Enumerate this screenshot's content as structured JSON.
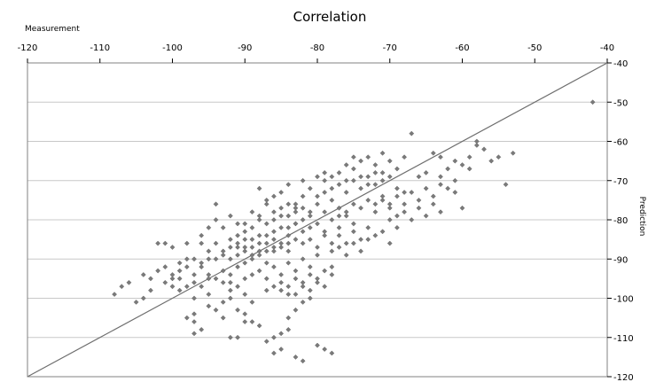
{
  "chart_data": {
    "type": "scatter",
    "title": "Correlation",
    "xlabel": "Measurement",
    "ylabel": "Prediction",
    "xlim": [
      -120,
      -40
    ],
    "ylim": [
      -120,
      -40
    ],
    "x_ticks": [
      -120,
      -110,
      -100,
      -90,
      -80,
      -70,
      -60,
      -50,
      -40
    ],
    "y_ticks": [
      -40,
      -50,
      -60,
      -70,
      -80,
      -90,
      -100,
      -110,
      -120
    ],
    "x_axis_position": "top",
    "y_axis_position": "right",
    "grid": "horizontal",
    "reference_line": {
      "from": [
        -120,
        -120
      ],
      "to": [
        -40,
        -40
      ]
    },
    "colors": {
      "points": "#7a7a7a",
      "line": "#6e6e6e",
      "grid": "#c8c8c8",
      "frame": "#808080"
    },
    "series": [
      {
        "values_note": "",
        "points": [
          [
            -108,
            -99
          ],
          [
            -107,
            -97
          ],
          [
            -106,
            -96
          ],
          [
            -105,
            -101
          ],
          [
            -104,
            -100
          ],
          [
            -103,
            -98
          ],
          [
            -102,
            -86
          ],
          [
            -101,
            -86
          ],
          [
            -100,
            -87
          ],
          [
            -100,
            -95
          ],
          [
            -99,
            -93
          ],
          [
            -99,
            -98
          ],
          [
            -98,
            -86
          ],
          [
            -98,
            -90
          ],
          [
            -97,
            -94
          ],
          [
            -97,
            -100
          ],
          [
            -96,
            -86
          ],
          [
            -96,
            -92
          ],
          [
            -95,
            -95
          ],
          [
            -95,
            -99
          ],
          [
            -94,
            -76
          ],
          [
            -94,
            -90
          ],
          [
            -93,
            -96
          ],
          [
            -93,
            -101
          ],
          [
            -92,
            -98
          ],
          [
            -92,
            -94
          ],
          [
            -91,
            -92
          ],
          [
            -91,
            -97
          ],
          [
            -90,
            -95
          ],
          [
            -90,
            -99
          ],
          [
            -97,
            -104
          ],
          [
            -97,
            -106
          ],
          [
            -96,
            -108
          ],
          [
            -95,
            -102
          ],
          [
            -94,
            -103
          ],
          [
            -93,
            -105
          ],
          [
            -92,
            -100
          ],
          [
            -91,
            -103
          ],
          [
            -90,
            -104
          ],
          [
            -89,
            -101
          ],
          [
            -96,
            -84
          ],
          [
            -95,
            -82
          ],
          [
            -94,
            -80
          ],
          [
            -93,
            -82
          ],
          [
            -92,
            -79
          ],
          [
            -91,
            -81
          ],
          [
            -90,
            -83
          ],
          [
            -89,
            -78
          ],
          [
            -88,
            -80
          ],
          [
            -87,
            -76
          ],
          [
            -95,
            -88
          ],
          [
            -94,
            -86
          ],
          [
            -93,
            -88
          ],
          [
            -92,
            -85
          ],
          [
            -91,
            -87
          ],
          [
            -90,
            -85
          ],
          [
            -89,
            -87
          ],
          [
            -88,
            -84
          ],
          [
            -87,
            -86
          ],
          [
            -86,
            -83
          ],
          [
            -92,
            -90
          ],
          [
            -91,
            -89
          ],
          [
            -90,
            -91
          ],
          [
            -89,
            -90
          ],
          [
            -88,
            -89
          ],
          [
            -87,
            -91
          ],
          [
            -86,
            -88
          ],
          [
            -85,
            -86
          ],
          [
            -84,
            -88
          ],
          [
            -83,
            -85
          ],
          [
            -89,
            -94
          ],
          [
            -88,
            -93
          ],
          [
            -87,
            -95
          ],
          [
            -86,
            -92
          ],
          [
            -85,
            -94
          ],
          [
            -84,
            -91
          ],
          [
            -83,
            -93
          ],
          [
            -82,
            -90
          ],
          [
            -81,
            -92
          ],
          [
            -80,
            -89
          ],
          [
            -88,
            -72
          ],
          [
            -87,
            -75
          ],
          [
            -86,
            -74
          ],
          [
            -85,
            -73
          ],
          [
            -84,
            -71
          ],
          [
            -83,
            -76
          ],
          [
            -82,
            -70
          ],
          [
            -81,
            -72
          ],
          [
            -80,
            -69
          ],
          [
            -79,
            -68
          ],
          [
            -86,
            -78
          ],
          [
            -85,
            -77
          ],
          [
            -84,
            -79
          ],
          [
            -83,
            -78
          ],
          [
            -82,
            -77
          ],
          [
            -81,
            -79
          ],
          [
            -80,
            -76
          ],
          [
            -79,
            -78
          ],
          [
            -78,
            -75
          ],
          [
            -77,
            -77
          ],
          [
            -84,
            -82
          ],
          [
            -83,
            -81
          ],
          [
            -82,
            -83
          ],
          [
            -81,
            -82
          ],
          [
            -80,
            -81
          ],
          [
            -79,
            -83
          ],
          [
            -78,
            -80
          ],
          [
            -77,
            -82
          ],
          [
            -76,
            -79
          ],
          [
            -75,
            -81
          ],
          [
            -82,
            -86
          ],
          [
            -81,
            -85
          ],
          [
            -80,
            -87
          ],
          [
            -79,
            -84
          ],
          [
            -78,
            -86
          ],
          [
            -77,
            -84
          ],
          [
            -76,
            -86
          ],
          [
            -75,
            -83
          ],
          [
            -74,
            -85
          ],
          [
            -73,
            -82
          ],
          [
            -80,
            -74
          ],
          [
            -79,
            -73
          ],
          [
            -78,
            -72
          ],
          [
            -77,
            -71
          ],
          [
            -76,
            -73
          ],
          [
            -75,
            -70
          ],
          [
            -74,
            -72
          ],
          [
            -73,
            -69
          ],
          [
            -72,
            -71
          ],
          [
            -71,
            -68
          ],
          [
            -76,
            -66
          ],
          [
            -75,
            -64
          ],
          [
            -74,
            -65
          ],
          [
            -73,
            -64
          ],
          [
            -72,
            -66
          ],
          [
            -71,
            -63
          ],
          [
            -70,
            -65
          ],
          [
            -69,
            -67
          ],
          [
            -68,
            -64
          ],
          [
            -67,
            -58
          ],
          [
            -72,
            -76
          ],
          [
            -71,
            -75
          ],
          [
            -70,
            -77
          ],
          [
            -69,
            -74
          ],
          [
            -68,
            -76
          ],
          [
            -67,
            -73
          ],
          [
            -66,
            -75
          ],
          [
            -65,
            -72
          ],
          [
            -64,
            -74
          ],
          [
            -63,
            -71
          ],
          [
            -70,
            -80
          ],
          [
            -69,
            -79
          ],
          [
            -68,
            -78
          ],
          [
            -67,
            -80
          ],
          [
            -66,
            -77
          ],
          [
            -65,
            -79
          ],
          [
            -64,
            -76
          ],
          [
            -63,
            -78
          ],
          [
            -62,
            -72
          ],
          [
            -61,
            -73
          ],
          [
            -66,
            -69
          ],
          [
            -65,
            -68
          ],
          [
            -64,
            -63
          ],
          [
            -63,
            -64
          ],
          [
            -62,
            -67
          ],
          [
            -61,
            -70
          ],
          [
            -60,
            -66
          ],
          [
            -59,
            -64
          ],
          [
            -58,
            -61
          ],
          [
            -57,
            -62
          ],
          [
            -60,
            -77
          ],
          [
            -56,
            -65
          ],
          [
            -55,
            -64
          ],
          [
            -54,
            -71
          ],
          [
            -53,
            -63
          ],
          [
            -42,
            -50
          ],
          [
            -58,
            -60
          ],
          [
            -61,
            -65
          ],
          [
            -59,
            -67
          ],
          [
            -63,
            -69
          ],
          [
            -98,
            -105
          ],
          [
            -97,
            -109
          ],
          [
            -92,
            -110
          ],
          [
            -89,
            -106
          ],
          [
            -87,
            -111
          ],
          [
            -86,
            -114
          ],
          [
            -85,
            -113
          ],
          [
            -84,
            -108
          ],
          [
            -83,
            -115
          ],
          [
            -82,
            -116
          ],
          [
            -80,
            -112
          ],
          [
            -79,
            -113
          ],
          [
            -78,
            -114
          ],
          [
            -85,
            -109
          ],
          [
            -88,
            -107
          ],
          [
            -90,
            -106
          ],
          [
            -91,
            -110
          ],
          [
            -86,
            -110
          ],
          [
            -84,
            -105
          ],
          [
            -83,
            -103
          ],
          [
            -85,
            -98
          ],
          [
            -84,
            -97
          ],
          [
            -83,
            -99
          ],
          [
            -82,
            -96
          ],
          [
            -81,
            -98
          ],
          [
            -80,
            -95
          ],
          [
            -79,
            -97
          ],
          [
            -78,
            -94
          ],
          [
            -82,
            -101
          ],
          [
            -81,
            -100
          ],
          [
            -90,
            -87
          ],
          [
            -89,
            -85
          ],
          [
            -88,
            -88
          ],
          [
            -87,
            -84
          ],
          [
            -86,
            -87
          ],
          [
            -85,
            -82
          ],
          [
            -84,
            -84
          ],
          [
            -83,
            -81
          ],
          [
            -82,
            -80
          ],
          [
            -81,
            -78
          ],
          [
            -79,
            -70
          ],
          [
            -78,
            -69
          ],
          [
            -77,
            -68
          ],
          [
            -76,
            -70
          ],
          [
            -75,
            -67
          ],
          [
            -74,
            -69
          ],
          [
            -73,
            -71
          ],
          [
            -72,
            -68
          ],
          [
            -71,
            -70
          ],
          [
            -70,
            -69
          ],
          [
            -78,
            -88
          ],
          [
            -77,
            -87
          ],
          [
            -76,
            -89
          ],
          [
            -75,
            -86
          ],
          [
            -74,
            -88
          ],
          [
            -73,
            -85
          ],
          [
            -72,
            -84
          ],
          [
            -71,
            -83
          ],
          [
            -70,
            -86
          ],
          [
            -69,
            -82
          ],
          [
            -101,
            -96
          ],
          [
            -100,
            -97
          ],
          [
            -99,
            -95
          ],
          [
            -98,
            -97
          ],
          [
            -97,
            -96
          ],
          [
            -96,
            -97
          ],
          [
            -95,
            -94
          ],
          [
            -94,
            -95
          ],
          [
            -93,
            -93
          ],
          [
            -92,
            -96
          ],
          [
            -104,
            -94
          ],
          [
            -103,
            -95
          ],
          [
            -102,
            -93
          ],
          [
            -101,
            -92
          ],
          [
            -100,
            -94
          ],
          [
            -99,
            -91
          ],
          [
            -98,
            -92
          ],
          [
            -97,
            -90
          ],
          [
            -96,
            -91
          ],
          [
            -95,
            -90
          ],
          [
            -91,
            -84
          ],
          [
            -90,
            -81
          ],
          [
            -89,
            -82
          ],
          [
            -88,
            -79
          ],
          [
            -87,
            -81
          ],
          [
            -86,
            -80
          ],
          [
            -85,
            -79
          ],
          [
            -84,
            -76
          ],
          [
            -83,
            -77
          ],
          [
            -82,
            -74
          ],
          [
            -93,
            -89
          ],
          [
            -92,
            -87
          ],
          [
            -91,
            -86
          ],
          [
            -90,
            -88
          ],
          [
            -89,
            -89
          ],
          [
            -88,
            -86
          ],
          [
            -87,
            -88
          ],
          [
            -86,
            -85
          ],
          [
            -85,
            -87
          ],
          [
            -84,
            -86
          ],
          [
            -87,
            -98
          ],
          [
            -86,
            -97
          ],
          [
            -85,
            -96
          ],
          [
            -84,
            -99
          ],
          [
            -83,
            -95
          ],
          [
            -82,
            -97
          ],
          [
            -81,
            -94
          ],
          [
            -80,
            -96
          ],
          [
            -79,
            -93
          ],
          [
            -78,
            -92
          ],
          [
            -77,
            -79
          ],
          [
            -76,
            -78
          ],
          [
            -75,
            -76
          ],
          [
            -74,
            -77
          ],
          [
            -73,
            -75
          ],
          [
            -72,
            -78
          ],
          [
            -71,
            -74
          ],
          [
            -70,
            -76
          ],
          [
            -69,
            -72
          ],
          [
            -68,
            -73
          ]
        ]
      }
    ]
  }
}
